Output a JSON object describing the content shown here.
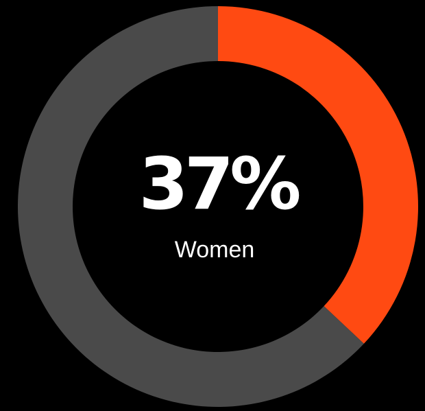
{
  "chart_data": {
    "type": "pie",
    "style": "donut",
    "slices": [
      {
        "label": "Women",
        "value": 37,
        "color": "#FF4A12"
      },
      {
        "label": "",
        "value": 63,
        "color": "#4A4A4A"
      }
    ],
    "center_value": "37%",
    "center_label": "Women",
    "background": "#000000",
    "text_color": "#FFFFFF"
  }
}
